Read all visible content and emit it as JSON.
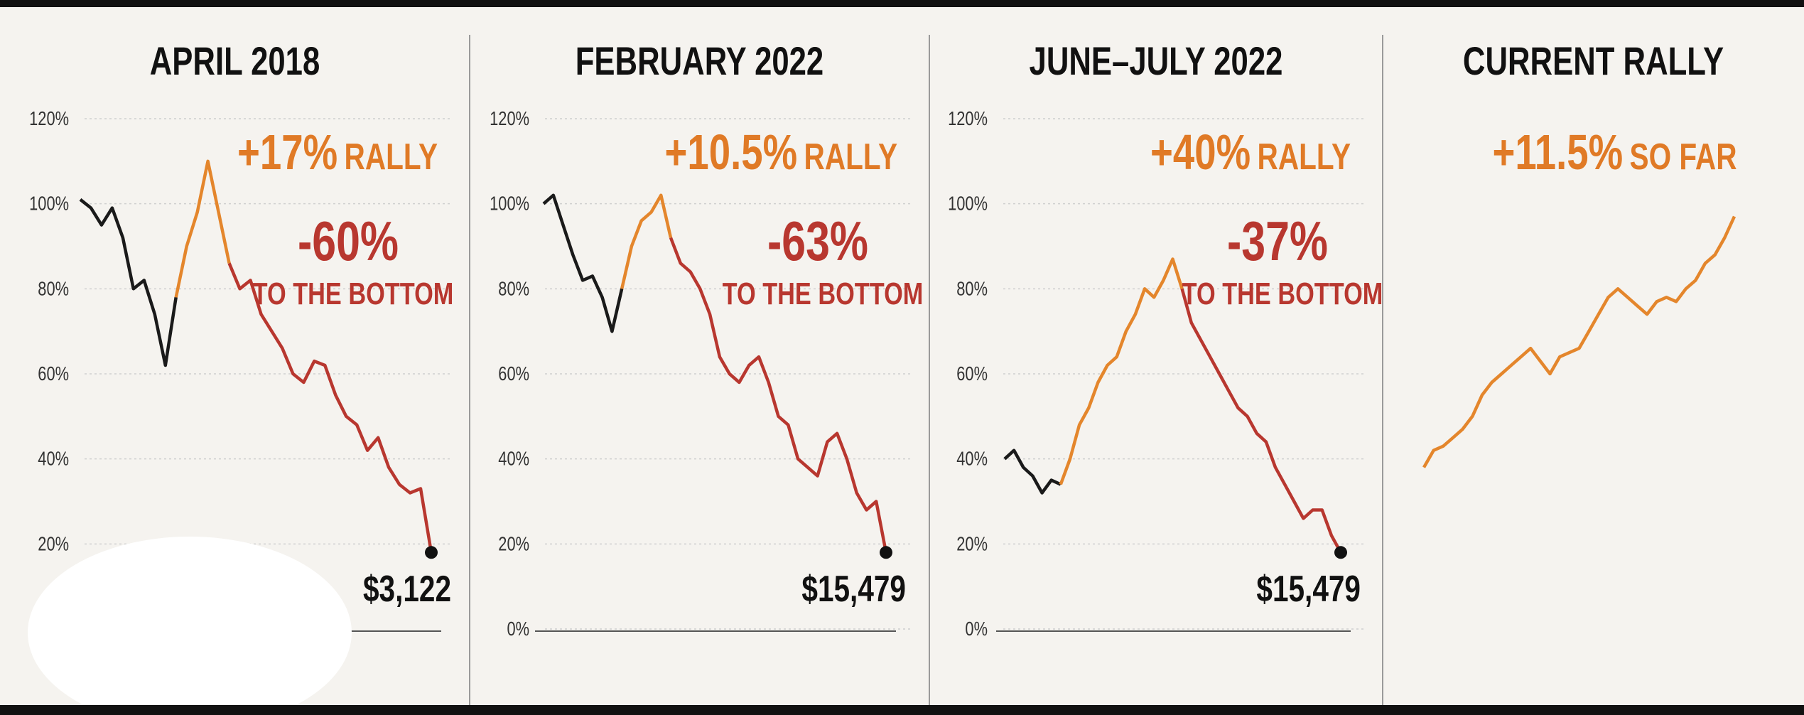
{
  "chart_data": [
    {
      "type": "line",
      "title": "APRIL 2018",
      "rally_pct": "+17%",
      "rally_word": "RALLY",
      "drop_pct": "-60%",
      "drop_word": "TO THE BOTTOM",
      "end_label": "$3,122",
      "ylim": [
        0,
        120
      ],
      "yticks": [
        {
          "value": 20,
          "label": "20%"
        },
        {
          "value": 40,
          "label": "40%"
        },
        {
          "value": 60,
          "label": "60%"
        },
        {
          "value": 80,
          "label": "80%"
        },
        {
          "value": 100,
          "label": "100%"
        },
        {
          "value": 120,
          "label": "120%"
        }
      ],
      "grid": true,
      "series": [
        {
          "color": "#1a1a1a",
          "values": [
            101,
            99,
            95,
            99,
            92,
            80,
            82,
            74,
            62,
            78,
            null,
            null,
            null,
            null,
            null,
            null,
            null,
            null,
            null,
            null,
            null,
            null,
            null,
            null,
            null,
            null,
            null,
            null,
            null,
            null,
            null,
            null,
            null,
            null
          ]
        },
        {
          "color": "#e4862c",
          "values": [
            null,
            null,
            null,
            null,
            null,
            null,
            null,
            null,
            null,
            78,
            90,
            98,
            110,
            98,
            86,
            null,
            null,
            null,
            null,
            null,
            null,
            null,
            null,
            null,
            null,
            null,
            null,
            null,
            null,
            null,
            null,
            null,
            null,
            null
          ]
        },
        {
          "color": "#b8372f",
          "values": [
            null,
            null,
            null,
            null,
            null,
            null,
            null,
            null,
            null,
            null,
            null,
            null,
            null,
            null,
            86,
            80,
            82,
            74,
            70,
            66,
            60,
            58,
            63,
            62,
            55,
            50,
            48,
            42,
            45,
            38,
            34,
            32,
            33,
            18
          ]
        }
      ]
    },
    {
      "type": "line",
      "title": "FEBRUARY 2022",
      "rally_pct": "+10.5%",
      "rally_word": "RALLY",
      "drop_pct": "-63%",
      "drop_word": "TO THE BOTTOM",
      "end_label": "$15,479",
      "ylim": [
        0,
        120
      ],
      "yticks": [
        {
          "value": 0,
          "label": "0%"
        },
        {
          "value": 20,
          "label": "20%"
        },
        {
          "value": 40,
          "label": "40%"
        },
        {
          "value": 60,
          "label": "60%"
        },
        {
          "value": 80,
          "label": "80%"
        },
        {
          "value": 100,
          "label": "100%"
        },
        {
          "value": 120,
          "label": "120%"
        }
      ],
      "grid": true,
      "series": [
        {
          "color": "#1a1a1a",
          "values": [
            100,
            102,
            95,
            88,
            82,
            83,
            78,
            70,
            80,
            null,
            null,
            null,
            null,
            null,
            null,
            null,
            null,
            null,
            null,
            null,
            null,
            null,
            null,
            null,
            null,
            null,
            null,
            null,
            null,
            null,
            null,
            null,
            null,
            null,
            null,
            null
          ]
        },
        {
          "color": "#e4862c",
          "values": [
            null,
            null,
            null,
            null,
            null,
            null,
            null,
            null,
            80,
            90,
            96,
            98,
            102,
            92,
            null,
            null,
            null,
            null,
            null,
            null,
            null,
            null,
            null,
            null,
            null,
            null,
            null,
            null,
            null,
            null,
            null,
            null,
            null,
            null,
            null,
            null
          ]
        },
        {
          "color": "#b8372f",
          "values": [
            null,
            null,
            null,
            null,
            null,
            null,
            null,
            null,
            null,
            null,
            null,
            null,
            null,
            92,
            86,
            84,
            80,
            74,
            64,
            60,
            58,
            62,
            64,
            58,
            50,
            48,
            40,
            38,
            36,
            44,
            46,
            40,
            32,
            28,
            30,
            18
          ]
        }
      ]
    },
    {
      "type": "line",
      "title": "JUNE–JULY 2022",
      "rally_pct": "+40%",
      "rally_word": "RALLY",
      "drop_pct": "-37%",
      "drop_word": "TO THE BOTTOM",
      "end_label": "$15,479",
      "ylim": [
        0,
        120
      ],
      "yticks": [
        {
          "value": 0,
          "label": "0%"
        },
        {
          "value": 20,
          "label": "20%"
        },
        {
          "value": 40,
          "label": "40%"
        },
        {
          "value": 60,
          "label": "60%"
        },
        {
          "value": 80,
          "label": "80%"
        },
        {
          "value": 100,
          "label": "100%"
        },
        {
          "value": 120,
          "label": "120%"
        }
      ],
      "grid": true,
      "series": [
        {
          "color": "#1a1a1a",
          "values": [
            40,
            42,
            38,
            36,
            32,
            35,
            34,
            null,
            null,
            null,
            null,
            null,
            null,
            null,
            null,
            null,
            null,
            null,
            null,
            null,
            null,
            null,
            null,
            null,
            null,
            null,
            null,
            null,
            null,
            null,
            null,
            null,
            null,
            null,
            null,
            null,
            null
          ]
        },
        {
          "color": "#e4862c",
          "values": [
            null,
            null,
            null,
            null,
            null,
            null,
            34,
            40,
            48,
            52,
            58,
            62,
            64,
            70,
            74,
            80,
            78,
            82,
            87,
            80,
            null,
            null,
            null,
            null,
            null,
            null,
            null,
            null,
            null,
            null,
            null,
            null,
            null,
            null,
            null,
            null,
            null
          ]
        },
        {
          "color": "#b8372f",
          "values": [
            null,
            null,
            null,
            null,
            null,
            null,
            null,
            null,
            null,
            null,
            null,
            null,
            null,
            null,
            null,
            null,
            null,
            null,
            null,
            80,
            72,
            68,
            64,
            60,
            56,
            52,
            50,
            46,
            44,
            38,
            34,
            30,
            26,
            28,
            28,
            22,
            18
          ]
        }
      ]
    },
    {
      "type": "line",
      "title": "CURRENT RALLY",
      "rally_pct": "+11.5%",
      "rally_word": "SO FAR",
      "ylim": [
        0,
        120
      ],
      "grid": false,
      "series": [
        {
          "color": "#e4862c",
          "values": [
            38,
            42,
            43,
            45,
            47,
            50,
            55,
            58,
            60,
            62,
            64,
            66,
            63,
            60,
            64,
            65,
            66,
            70,
            74,
            78,
            80,
            78,
            76,
            74,
            77,
            78,
            77,
            80,
            82,
            86,
            88,
            92,
            97
          ]
        }
      ]
    }
  ]
}
